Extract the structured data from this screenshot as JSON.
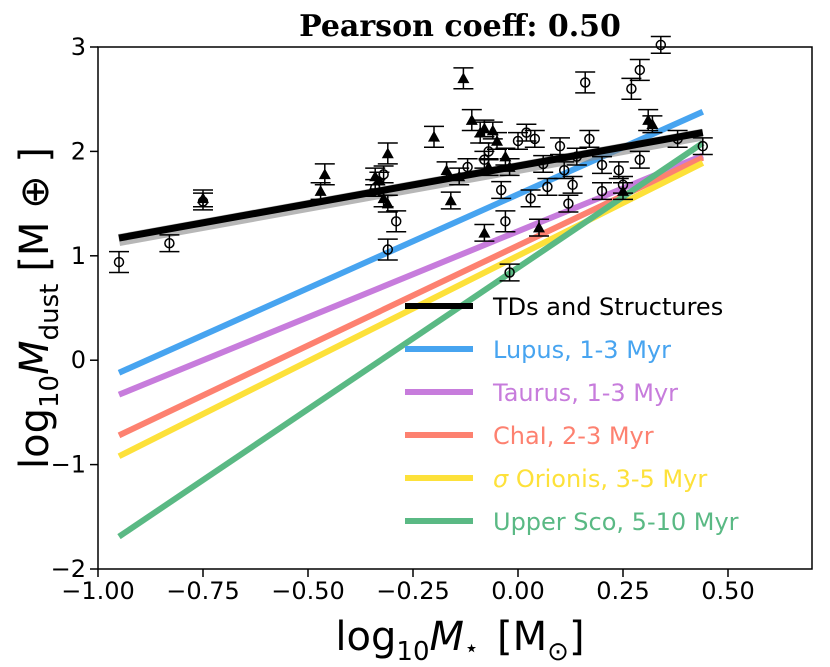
{
  "chart_data": {
    "type": "scatter",
    "title": "Pearson coeff: 0.50",
    "xlabel": {
      "main": "log",
      "sub": "10",
      "var": "M",
      "star": "⋆",
      "unit": "[M",
      "unit_sub": "⊙",
      "close": "]"
    },
    "ylabel": {
      "main": "log",
      "sub": "10",
      "var": "M",
      "var_sub": "dust",
      "unit": "[M ⊕ ]"
    },
    "xlim": [
      -1.0,
      0.7
    ],
    "ylim": [
      -2,
      3
    ],
    "xticks": [
      -1.0,
      -0.75,
      -0.5,
      -0.25,
      0.0,
      0.25,
      0.5
    ],
    "xtick_labels": [
      "−1.00",
      "−0.75",
      "−0.50",
      "−0.25",
      "0.00",
      "0.25",
      "0.50"
    ],
    "yticks": [
      -2,
      -1,
      0,
      1,
      2,
      3
    ],
    "ytick_labels": [
      "−2",
      "−1",
      "0",
      "1",
      "2",
      "3"
    ],
    "legend_position": "lower-right",
    "fit_lines": [
      {
        "name": "TDs and Structures",
        "color": "#000000",
        "x": [
          -0.95,
          0.44
        ],
        "y": [
          1.17,
          2.18
        ]
      },
      {
        "name": "Lupus, 1-3 Myr",
        "color": "#47a4f0",
        "x": [
          -0.95,
          0.44
        ],
        "y": [
          -0.12,
          2.38
        ]
      },
      {
        "name": "Taurus, 1-3 Myr",
        "color": "#c77cdc",
        "x": [
          -0.95,
          0.44
        ],
        "y": [
          -0.33,
          1.96
        ]
      },
      {
        "name": "ChaI, 2-3 Myr",
        "color": "#fd8170",
        "x": [
          -0.95,
          0.44
        ],
        "y": [
          -0.72,
          1.94
        ]
      },
      {
        "name_prefix": "σ",
        "name": "Orionis, 3-5 Myr",
        "color": "#fde13a",
        "x": [
          -0.95,
          0.44
        ],
        "y": [
          -0.92,
          1.89
        ]
      },
      {
        "name": "Upper Sco, 5-10 Myr",
        "color": "#5ab984",
        "x": [
          -0.95,
          0.44
        ],
        "y": [
          -1.69,
          2.08
        ]
      }
    ],
    "series": [
      {
        "name": "TDs",
        "marker": "triangle",
        "points": [
          {
            "x": -0.75,
            "y": 1.55,
            "err": 0.08
          },
          {
            "x": -0.46,
            "y": 1.78,
            "err": 0.1
          },
          {
            "x": -0.47,
            "y": 1.62,
            "err": 0.08
          },
          {
            "x": -0.34,
            "y": 1.76,
            "err": 0.08
          },
          {
            "x": -0.33,
            "y": 1.72,
            "err": 0.08
          },
          {
            "x": -0.31,
            "y": 1.98,
            "err": 0.1
          },
          {
            "x": -0.32,
            "y": 1.55,
            "err": 0.08
          },
          {
            "x": -0.31,
            "y": 1.5,
            "err": 0.08
          },
          {
            "x": -0.2,
            "y": 2.14,
            "err": 0.1
          },
          {
            "x": -0.17,
            "y": 1.82,
            "err": 0.08
          },
          {
            "x": -0.16,
            "y": 1.53,
            "err": 0.08
          },
          {
            "x": -0.14,
            "y": 1.76,
            "err": 0.08
          },
          {
            "x": -0.13,
            "y": 2.7,
            "err": 0.1
          },
          {
            "x": -0.11,
            "y": 2.3,
            "err": 0.1
          },
          {
            "x": -0.09,
            "y": 2.18,
            "err": 0.1
          },
          {
            "x": -0.08,
            "y": 2.22,
            "err": 0.08
          },
          {
            "x": -0.07,
            "y": 1.85,
            "err": 0.08
          },
          {
            "x": -0.06,
            "y": 2.2,
            "err": 0.08
          },
          {
            "x": -0.05,
            "y": 2.1,
            "err": 0.08
          },
          {
            "x": -0.03,
            "y": 1.95,
            "err": 0.08
          },
          {
            "x": -0.02,
            "y": 1.85,
            "err": 0.08
          },
          {
            "x": -0.08,
            "y": 1.22,
            "err": 0.08
          },
          {
            "x": 0.05,
            "y": 1.27,
            "err": 0.08
          },
          {
            "x": 0.25,
            "y": 1.62,
            "err": 0.08
          },
          {
            "x": 0.31,
            "y": 2.3,
            "err": 0.1
          },
          {
            "x": 0.32,
            "y": 2.26,
            "err": 0.08
          }
        ]
      },
      {
        "name": "Structures",
        "marker": "circle",
        "points": [
          {
            "x": -0.95,
            "y": 0.94,
            "err": 0.1
          },
          {
            "x": -0.83,
            "y": 1.12,
            "err": 0.08
          },
          {
            "x": -0.75,
            "y": 1.52,
            "err": 0.08
          },
          {
            "x": -0.34,
            "y": 1.65,
            "err": 0.08
          },
          {
            "x": -0.32,
            "y": 1.78,
            "err": 0.08
          },
          {
            "x": -0.31,
            "y": 1.06,
            "err": 0.1
          },
          {
            "x": -0.29,
            "y": 1.33,
            "err": 0.1
          },
          {
            "x": -0.12,
            "y": 1.85,
            "err": 0.08
          },
          {
            "x": -0.08,
            "y": 1.92,
            "err": 0.08
          },
          {
            "x": -0.07,
            "y": 2.0,
            "err": 0.08
          },
          {
            "x": -0.04,
            "y": 1.63,
            "err": 0.08
          },
          {
            "x": -0.03,
            "y": 1.33,
            "err": 0.1
          },
          {
            "x": -0.02,
            "y": 0.84,
            "err": 0.08
          },
          {
            "x": 0.0,
            "y": 2.1,
            "err": 0.08
          },
          {
            "x": 0.02,
            "y": 2.18,
            "err": 0.08
          },
          {
            "x": 0.03,
            "y": 1.55,
            "err": 0.08
          },
          {
            "x": 0.04,
            "y": 2.12,
            "err": 0.08
          },
          {
            "x": 0.06,
            "y": 1.88,
            "err": 0.08
          },
          {
            "x": 0.07,
            "y": 1.66,
            "err": 0.08
          },
          {
            "x": 0.1,
            "y": 2.05,
            "err": 0.08
          },
          {
            "x": 0.11,
            "y": 1.82,
            "err": 0.08
          },
          {
            "x": 0.12,
            "y": 1.5,
            "err": 0.08
          },
          {
            "x": 0.13,
            "y": 1.68,
            "err": 0.08
          },
          {
            "x": 0.14,
            "y": 1.95,
            "err": 0.08
          },
          {
            "x": 0.16,
            "y": 2.66,
            "err": 0.1
          },
          {
            "x": 0.17,
            "y": 2.12,
            "err": 0.08
          },
          {
            "x": 0.2,
            "y": 1.87,
            "err": 0.08
          },
          {
            "x": 0.2,
            "y": 1.62,
            "err": 0.08
          },
          {
            "x": 0.24,
            "y": 1.82,
            "err": 0.08
          },
          {
            "x": 0.25,
            "y": 1.68,
            "err": 0.08
          },
          {
            "x": 0.27,
            "y": 2.6,
            "err": 0.1
          },
          {
            "x": 0.29,
            "y": 2.78,
            "err": 0.1
          },
          {
            "x": 0.29,
            "y": 1.92,
            "err": 0.08
          },
          {
            "x": 0.34,
            "y": 3.02,
            "err": 0.08
          },
          {
            "x": 0.38,
            "y": 2.12,
            "err": 0.08
          },
          {
            "x": 0.44,
            "y": 2.05,
            "err": 0.08
          }
        ]
      }
    ]
  }
}
